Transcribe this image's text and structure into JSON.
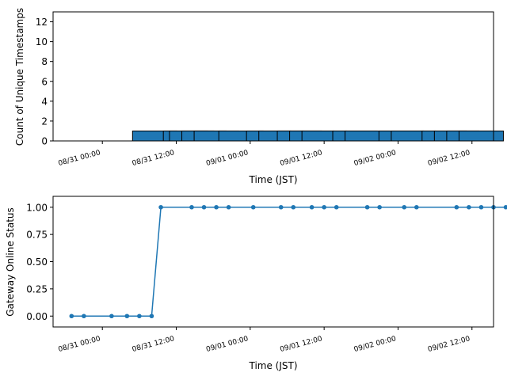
{
  "chart_data": [
    {
      "type": "bar",
      "title": "",
      "xlabel": "Time (JST)",
      "ylabel": "Count of Unique Timestamps",
      "x_range": [
        "08/30 16:00",
        "09/02 15:30"
      ],
      "ylim": [
        0,
        13
      ],
      "yticks": [
        "0",
        "2",
        "4",
        "6",
        "8",
        "10",
        "12"
      ],
      "xticks": [
        {
          "t": "08/31 00:00",
          "label": "08/31 00:00"
        },
        {
          "t": "08/31 12:00",
          "label": "08/31 12:00"
        },
        {
          "t": "09/01 00:00",
          "label": "09/01 00:00"
        },
        {
          "t": "09/01 12:00",
          "label": "09/01 12:00"
        },
        {
          "t": "09/02 00:00",
          "label": "09/02 00:00"
        },
        {
          "t": "09/02 12:00",
          "label": "09/02 12:00"
        }
      ],
      "bar_color": "#1f77b4",
      "bar_width_hours": 1,
      "bars": [
        {
          "t": "08/31 08:30",
          "value": 1
        },
        {
          "t": "08/31 13:30",
          "value": 1
        },
        {
          "t": "08/31 14:30",
          "value": 1
        },
        {
          "t": "08/31 16:30",
          "value": 1
        },
        {
          "t": "08/31 18:30",
          "value": 1
        },
        {
          "t": "08/31 22:30",
          "value": 1
        },
        {
          "t": "09/01 03:00",
          "value": 1
        },
        {
          "t": "09/01 05:00",
          "value": 1
        },
        {
          "t": "09/01 08:00",
          "value": 1
        },
        {
          "t": "09/01 10:00",
          "value": 1
        },
        {
          "t": "09/01 12:00",
          "value": 1
        },
        {
          "t": "09/01 17:00",
          "value": 1
        },
        {
          "t": "09/01 19:00",
          "value": 1
        },
        {
          "t": "09/02 00:30",
          "value": 1
        },
        {
          "t": "09/02 02:30",
          "value": 1
        },
        {
          "t": "09/02 07:30",
          "value": 1
        },
        {
          "t": "09/02 09:30",
          "value": 1
        },
        {
          "t": "09/02 11:30",
          "value": 1
        },
        {
          "t": "09/02 13:30",
          "value": 1
        }
      ]
    },
    {
      "type": "line",
      "title": "",
      "xlabel": "Time (JST)",
      "ylabel": "Gateway Online Status",
      "x_range": [
        "08/30 16:00",
        "09/02 15:30"
      ],
      "ylim": [
        -0.1,
        1.1
      ],
      "yticks": [
        "0.00",
        "0.25",
        "0.50",
        "0.75",
        "1.00"
      ],
      "xticks": [
        {
          "t": "08/31 00:00",
          "label": "08/31 00:00"
        },
        {
          "t": "08/31 12:00",
          "label": "08/31 12:00"
        },
        {
          "t": "09/01 00:00",
          "label": "09/01 00:00"
        },
        {
          "t": "09/01 12:00",
          "label": "09/01 12:00"
        },
        {
          "t": "09/02 00:00",
          "label": "09/02 00:00"
        },
        {
          "t": "09/02 12:00",
          "label": "09/02 12:00"
        }
      ],
      "line_color": "#1f77b4",
      "points": [
        {
          "t": "08/30 19:00",
          "value": 0
        },
        {
          "t": "08/30 21:00",
          "value": 0
        },
        {
          "t": "08/31 01:30",
          "value": 0
        },
        {
          "t": "08/31 04:00",
          "value": 0
        },
        {
          "t": "08/31 06:00",
          "value": 0
        },
        {
          "t": "08/31 08:00",
          "value": 0
        },
        {
          "t": "08/31 09:30",
          "value": 1
        },
        {
          "t": "08/31 14:30",
          "value": 1
        },
        {
          "t": "08/31 16:30",
          "value": 1
        },
        {
          "t": "08/31 18:30",
          "value": 1
        },
        {
          "t": "08/31 20:30",
          "value": 1
        },
        {
          "t": "09/01 00:30",
          "value": 1
        },
        {
          "t": "09/01 05:00",
          "value": 1
        },
        {
          "t": "09/01 07:00",
          "value": 1
        },
        {
          "t": "09/01 10:00",
          "value": 1
        },
        {
          "t": "09/01 12:00",
          "value": 1
        },
        {
          "t": "09/01 14:00",
          "value": 1
        },
        {
          "t": "09/01 19:00",
          "value": 1
        },
        {
          "t": "09/01 21:00",
          "value": 1
        },
        {
          "t": "09/02 01:00",
          "value": 1
        },
        {
          "t": "09/02 03:00",
          "value": 1
        },
        {
          "t": "09/02 09:30",
          "value": 1
        },
        {
          "t": "09/02 11:30",
          "value": 1
        },
        {
          "t": "09/02 13:30",
          "value": 1
        },
        {
          "t": "09/02 15:30",
          "value": 1
        },
        {
          "t": "09/02 17:30",
          "value": 1
        },
        {
          "t": "09/02 19:30",
          "value": 1
        }
      ]
    }
  ]
}
